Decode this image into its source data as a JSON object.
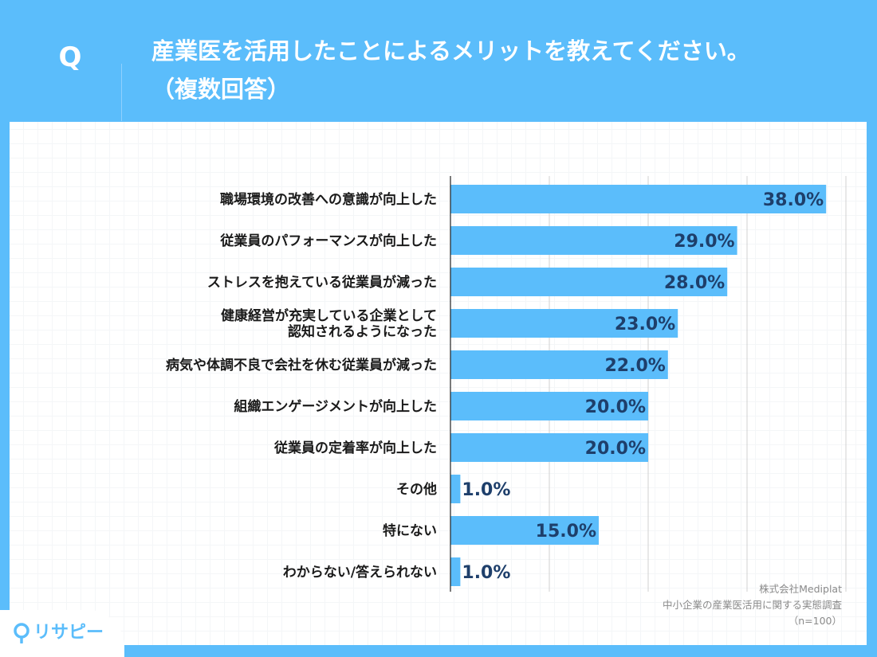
{
  "header": {
    "q_mark": "Q",
    "title_line1": "産業医を活用したことによるメリットを教えてください。",
    "title_line2": "（複数回答）"
  },
  "chart_data": {
    "type": "bar",
    "orientation": "horizontal",
    "title": "産業医を活用したことによるメリットを教えてください。（複数回答）",
    "categories": [
      [
        "職場環境の改善への意識が向上した"
      ],
      [
        "従業員のパフォーマンスが向上した"
      ],
      [
        "ストレスを抱えている従業員が減った"
      ],
      [
        "健康経営が充実している企業として",
        "認知されるようになった"
      ],
      [
        "病気や体調不良で会社を休む従業員が減った"
      ],
      [
        "組織エンゲージメントが向上した"
      ],
      [
        "従業員の定着率が向上した"
      ],
      [
        "その他"
      ],
      [
        "特にない"
      ],
      [
        "わからない/答えられない"
      ]
    ],
    "values": [
      38.0,
      29.0,
      28.0,
      23.0,
      22.0,
      20.0,
      20.0,
      1.0,
      15.0,
      1.0
    ],
    "value_labels": [
      "38.0%",
      "29.0%",
      "28.0%",
      "23.0%",
      "22.0%",
      "20.0%",
      "20.0%",
      "1.0%",
      "15.0%",
      "1.0%"
    ],
    "xlim": [
      0,
      40
    ],
    "gridlines": [
      10,
      20,
      30,
      40
    ],
    "bar_color": "#5bbdfb",
    "label_color": "#1e3f6b"
  },
  "source": {
    "company": "株式会社Mediplat",
    "survey": "中小企業の産業医活用に関する実態調査",
    "sample": "（n=100）"
  },
  "brand": {
    "logo_text": "リサピー"
  }
}
